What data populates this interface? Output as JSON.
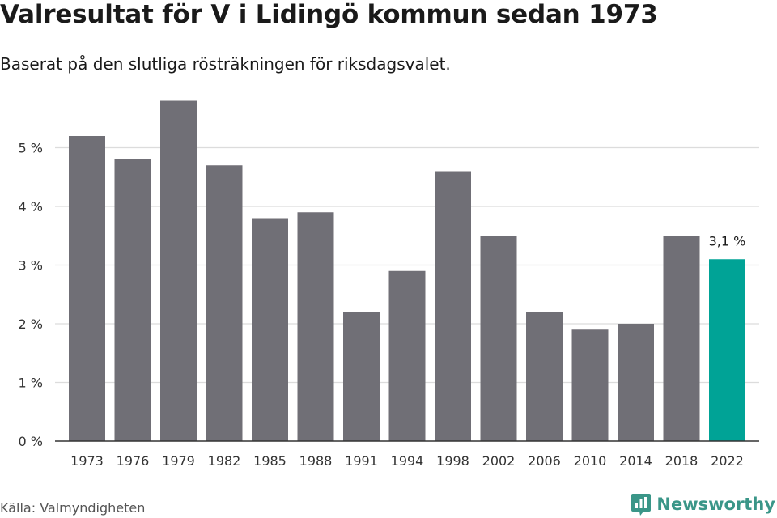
{
  "header": {
    "title": "Valresultat för V i Lidingö kommun sedan 1973",
    "subtitle": "Baserat på den slutliga rösträkningen för riksdagsvalet."
  },
  "footer": {
    "source": "Källa: Valmyndigheten",
    "brand": "Newsworthy",
    "brand_icon": "bar-chart-logo-icon"
  },
  "colors": {
    "bar": "#706f76",
    "highlight": "#00a396",
    "grid": "#dcdcdc",
    "axis": "#333333",
    "brand": "#3a9688"
  },
  "chart_data": {
    "type": "bar",
    "categories": [
      "1973",
      "1976",
      "1979",
      "1982",
      "1985",
      "1988",
      "1991",
      "1994",
      "1998",
      "2002",
      "2006",
      "2010",
      "2014",
      "2018",
      "2022"
    ],
    "values": [
      5.2,
      4.8,
      5.8,
      4.7,
      3.8,
      3.9,
      2.2,
      2.9,
      4.6,
      3.5,
      2.2,
      1.9,
      2.0,
      3.5,
      3.1
    ],
    "title": "Valresultat för V i Lidingö kommun sedan 1973",
    "subtitle": "Baserat på den slutliga rösträkningen för riksdagsvalet.",
    "xlabel": "",
    "ylabel": "",
    "ylim": [
      0,
      5.8
    ],
    "yticks": [
      0,
      1,
      2,
      3,
      4,
      5
    ],
    "ytick_labels": [
      "0 %",
      "1 %",
      "2 %",
      "3 %",
      "4 %",
      "5 %"
    ],
    "grid": true,
    "highlight_category": "2022",
    "annotations": [
      {
        "category": "2022",
        "text": "3,1 %"
      }
    ]
  }
}
